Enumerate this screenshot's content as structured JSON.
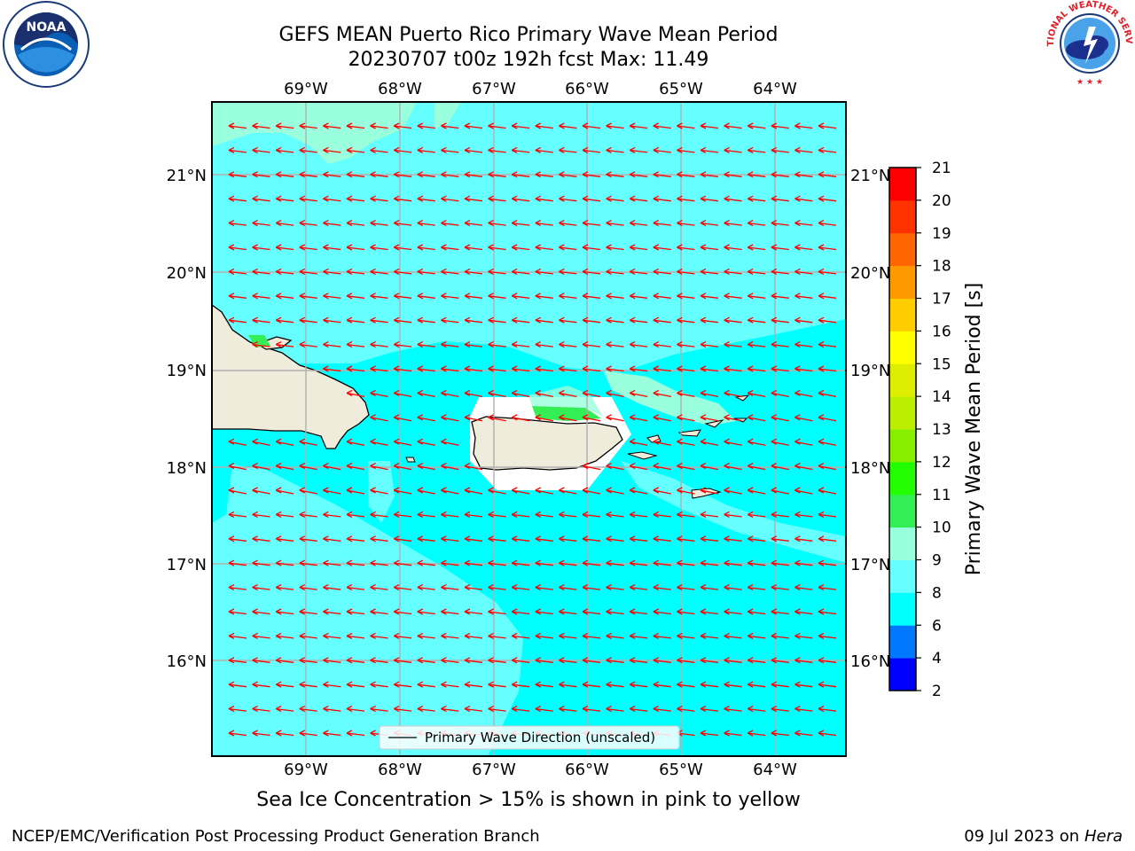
{
  "header": {
    "title_line1": "GEFS MEAN Puerto Rico Primary Wave Mean Period",
    "title_line2": "20230707 t00z 192h fcst   Max: 11.49"
  },
  "map": {
    "lon_labels": [
      "69°W",
      "68°W",
      "67°W",
      "66°W",
      "65°W",
      "64°W"
    ],
    "lat_labels": [
      "21°N",
      "20°N",
      "19°N",
      "18°N",
      "17°N",
      "16°N"
    ],
    "legend_label": "Primary Wave Direction (unscaled)",
    "arrow_color": "#ff0000",
    "land_color": "#efecdc",
    "ocean_colors": {
      "6-8": "#00ffff",
      "8-9": "#66ffff",
      "9-10": "#99ffdd",
      "10-11": "#33ee55",
      "11-12": "#22dd00"
    }
  },
  "colorbar": {
    "label": "Primary Wave Mean Period [s]",
    "ticks": [
      "2",
      "4",
      "6",
      "8",
      "9",
      "10",
      "11",
      "12",
      "13",
      "14",
      "15",
      "16",
      "17",
      "18",
      "19",
      "20",
      "21"
    ],
    "colors": [
      "#0000ff",
      "#0077ff",
      "#00ffff",
      "#66ffff",
      "#99ffdd",
      "#33ee55",
      "#22ff00",
      "#88ee00",
      "#bbee00",
      "#ddee00",
      "#ffff00",
      "#ffcc00",
      "#ff9900",
      "#ff6600",
      "#ff3300",
      "#ff0000"
    ]
  },
  "caption": "Sea Ice Concentration > 15% is shown in pink to yellow",
  "footer": {
    "left": "NCEP/EMC/Verification Post Processing Product Generation Branch",
    "right_date": "09 Jul 2023 on ",
    "right_machine": "Hera"
  },
  "logos": {
    "left": "NOAA",
    "right": "NATIONAL WEATHER SERVICE"
  }
}
